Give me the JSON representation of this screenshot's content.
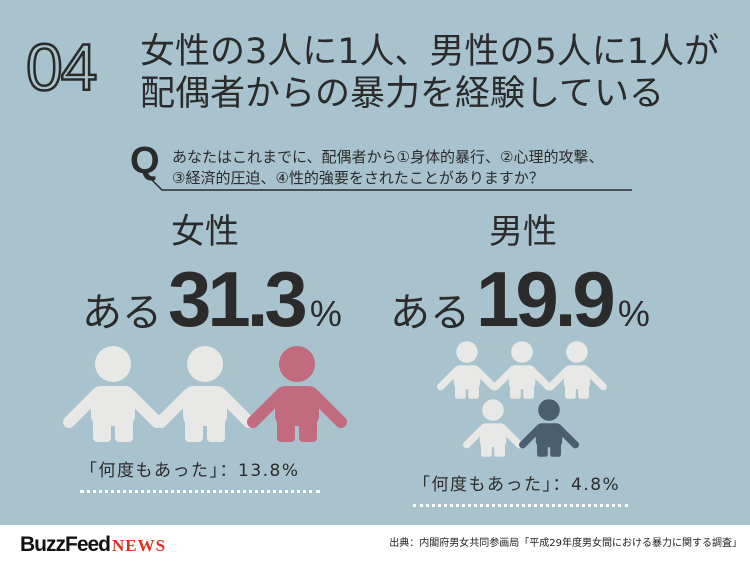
{
  "header": {
    "number": "04",
    "title_lines": [
      "女性の3人に1人、男性の5人に1人が",
      "配偶者からの暴力を経験している"
    ]
  },
  "question": {
    "marker": "Q",
    "lines": [
      "あなたはこれまでに、配偶者から①身体的暴行、②心理的攻撃、",
      "③経済的圧迫、④性的強要をされたことがありますか？"
    ]
  },
  "groups": [
    {
      "label": "女性",
      "stat_prefix": "ある",
      "stat_value": "31.3",
      "stat_unit": "%",
      "people_total": 3,
      "people_highlighted": 1,
      "highlight_color": "#c26a7e",
      "caption": "「何度もあった」：13.8%"
    },
    {
      "label": "男性",
      "stat_prefix": "ある",
      "stat_value": "19.9",
      "stat_unit": "%",
      "people_total": 5,
      "people_highlighted": 1,
      "highlight_color": "#4b5e6f",
      "caption": "「何度もあった」：4.8%"
    }
  ],
  "footer": {
    "brand": "BuzzFeed",
    "brand_suffix": "NEWS",
    "source": "出典：内閣府男女共同参画局「平成29年度男女間における暴力に関する調査」"
  },
  "colors": {
    "background": "#a8c3cd",
    "text": "#2b2b2b",
    "person_base": "#e8e8e6",
    "dots": "#ffffff",
    "brand_red": "#e0301e"
  }
}
